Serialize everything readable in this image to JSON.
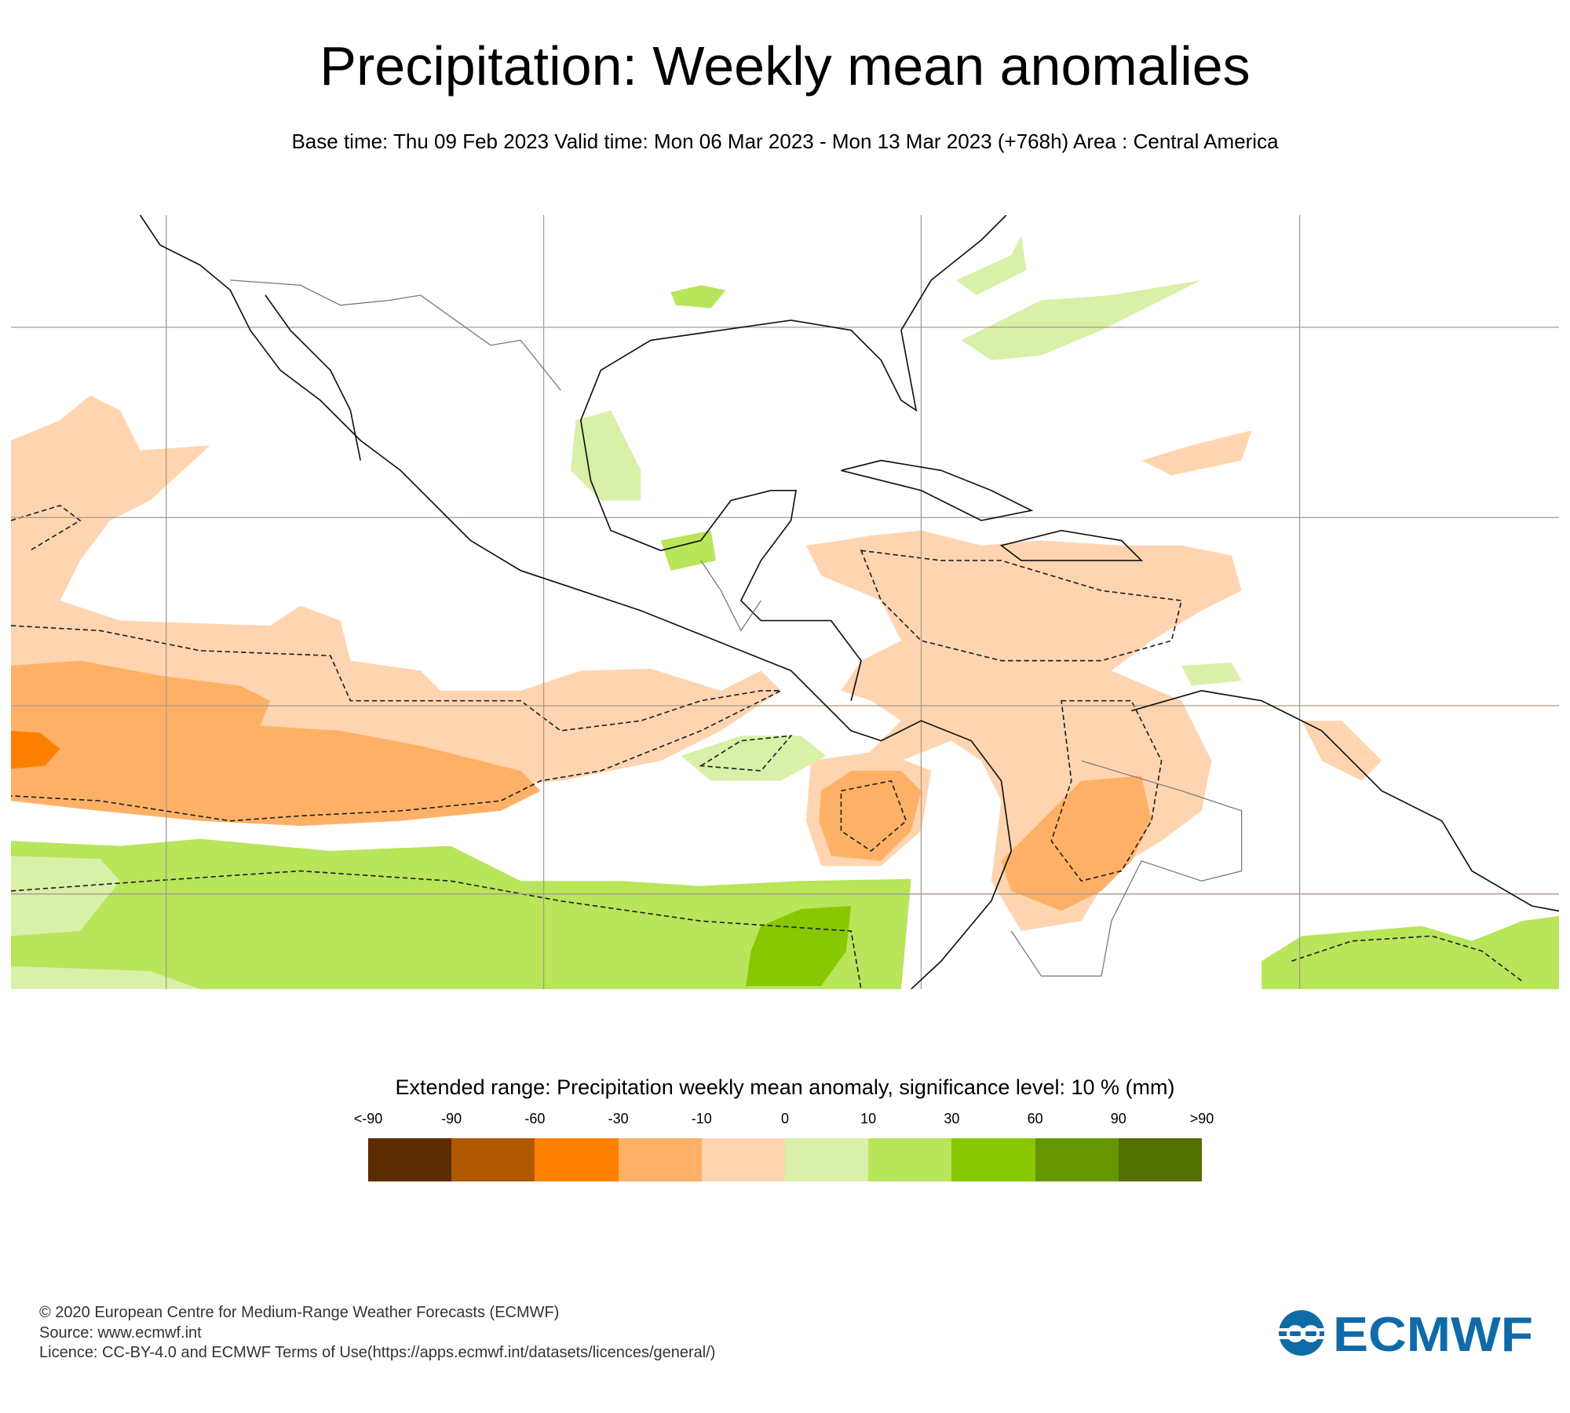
{
  "title": "Precipitation: Weekly mean anomalies",
  "subtitle": "Base time: Thu 09 Feb 2023 Valid time: Mon 06 Mar 2023 - Mon 13 Mar 2023 (+768h) Area : Central America",
  "legend": {
    "title": "Extended range: Precipitation weekly mean anomaly, significance level: 10 % (mm)",
    "labels": [
      "<-90",
      "-90",
      "-60",
      "-30",
      "-10",
      "0",
      "10",
      "30",
      "60",
      "90",
      ">90"
    ],
    "colors": [
      "#5c2c00",
      "#b05700",
      "#ff8000",
      "#feb166",
      "#fed5b0",
      "#d9f0a8",
      "#b8e55a",
      "#88c800",
      "#659600",
      "#526f00"
    ]
  },
  "footer": {
    "copyright": "© 2020 European Centre for Medium-Range Weather Forecasts (ECMWF)",
    "source": "Source: www.ecmwf.int",
    "licence": "Licence: CC-BY-4.0 and ECMWF Terms of Use(https://apps.ecmwf.int/datasets/licences/general/)"
  },
  "logo": {
    "text": "ECMWF",
    "color": "#0f6ba8"
  }
}
